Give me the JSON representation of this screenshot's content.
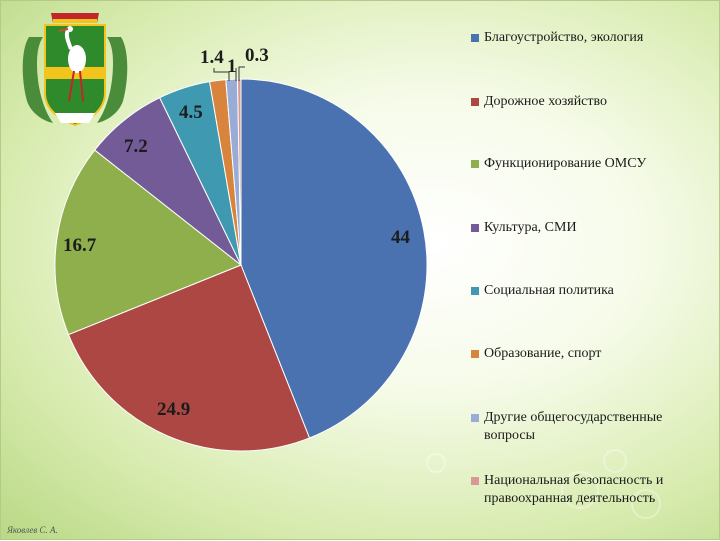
{
  "chart_data": {
    "type": "pie",
    "title": "",
    "categories": [
      "Благоустройство, экология",
      "Дорожное хозяйство",
      "Функционирование ОМСУ",
      "Культура, СМИ",
      "Социальная политика",
      "Образование, спорт",
      "Другие общегосударственные вопросы",
      "Национальная безопасность и правоохранная деятельность"
    ],
    "values": [
      44,
      24.9,
      16.7,
      7.2,
      4.5,
      1.4,
      1,
      0.3
    ],
    "data_labels": [
      "44",
      "24.9",
      "16.7",
      "7.2",
      "4.5",
      "1.4",
      "1",
      "0.3"
    ],
    "colors": [
      "#4a72b0",
      "#ad4744",
      "#8faf4d",
      "#735b98",
      "#3f9ab1",
      "#d8843c",
      "#98acd5",
      "#d99795"
    ],
    "legend_position": "right"
  },
  "legend": {
    "items": [
      {
        "label_lines": [
          "Благоустройство, экология"
        ]
      },
      {
        "label_lines": [
          "Дорожное хозяйство"
        ]
      },
      {
        "label_lines": [
          "Функционирование ОМСУ"
        ]
      },
      {
        "label_lines": [
          "Культура, СМИ"
        ]
      },
      {
        "label_lines": [
          "Социальная политика"
        ]
      },
      {
        "label_lines": [
          "Образование, спорт"
        ]
      },
      {
        "label_lines": [
          "Другие общегосударственные",
          "вопросы"
        ]
      },
      {
        "label_lines": [
          "Национальная безопасность и",
          "правоохранная деятельность"
        ]
      }
    ]
  },
  "emblem": {
    "icon": "coat-of-arms-crane-icon",
    "colors": {
      "field": "#2f8a2b",
      "stripe": "#f2c41c",
      "crown": "#c0262c"
    }
  },
  "footer": {
    "signature": "Яковлев С. А."
  }
}
